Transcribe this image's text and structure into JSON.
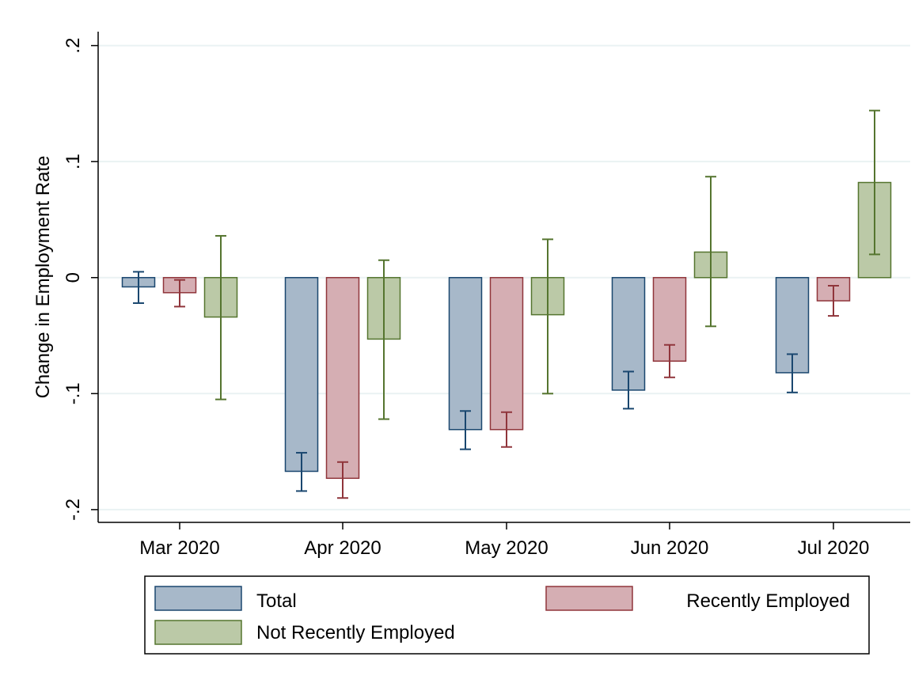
{
  "chart_data": {
    "type": "bar",
    "ylabel": "Change in Employment Rate",
    "ylim": [
      -0.211,
      0.212
    ],
    "yticks": [
      {
        "value": -0.2,
        "label": "-.2"
      },
      {
        "value": -0.1,
        "label": "-.1"
      },
      {
        "value": 0,
        "label": "0"
      },
      {
        "value": 0.1,
        "label": ".1"
      },
      {
        "value": 0.2,
        "label": ".2"
      }
    ],
    "grid": true,
    "categories": [
      "Mar 2020",
      "Apr 2020",
      "May 2020",
      "Jun 2020",
      "Jul 2020"
    ],
    "series": [
      {
        "name": "Total",
        "fill": "#a7b8c9",
        "stroke": "#1a476f",
        "values": [
          -0.008,
          -0.167,
          -0.131,
          -0.097,
          -0.082
        ],
        "ci_low": [
          -0.022,
          -0.184,
          -0.148,
          -0.113,
          -0.099
        ],
        "ci_high": [
          0.005,
          -0.151,
          -0.115,
          -0.081,
          -0.066
        ]
      },
      {
        "name": "Recently Employed",
        "fill": "#d5aeb3",
        "stroke": "#90353b",
        "values": [
          -0.013,
          -0.173,
          -0.131,
          -0.072,
          -0.02
        ],
        "ci_low": [
          -0.025,
          -0.19,
          -0.146,
          -0.086,
          -0.033
        ],
        "ci_high": [
          -0.002,
          -0.159,
          -0.116,
          -0.058,
          -0.007
        ]
      },
      {
        "name": "Not Recently Employed",
        "fill": "#bbc9a7",
        "stroke": "#55752f",
        "values": [
          -0.034,
          -0.053,
          -0.032,
          0.022,
          0.082
        ],
        "ci_low": [
          -0.105,
          -0.122,
          -0.1,
          -0.042,
          0.02
        ],
        "ci_high": [
          0.036,
          0.015,
          0.033,
          0.087,
          0.144
        ]
      }
    ],
    "legend": {
      "placement": "bottom",
      "entries": [
        "Total",
        "Recently Employed",
        "Not Recently Employed"
      ]
    }
  }
}
